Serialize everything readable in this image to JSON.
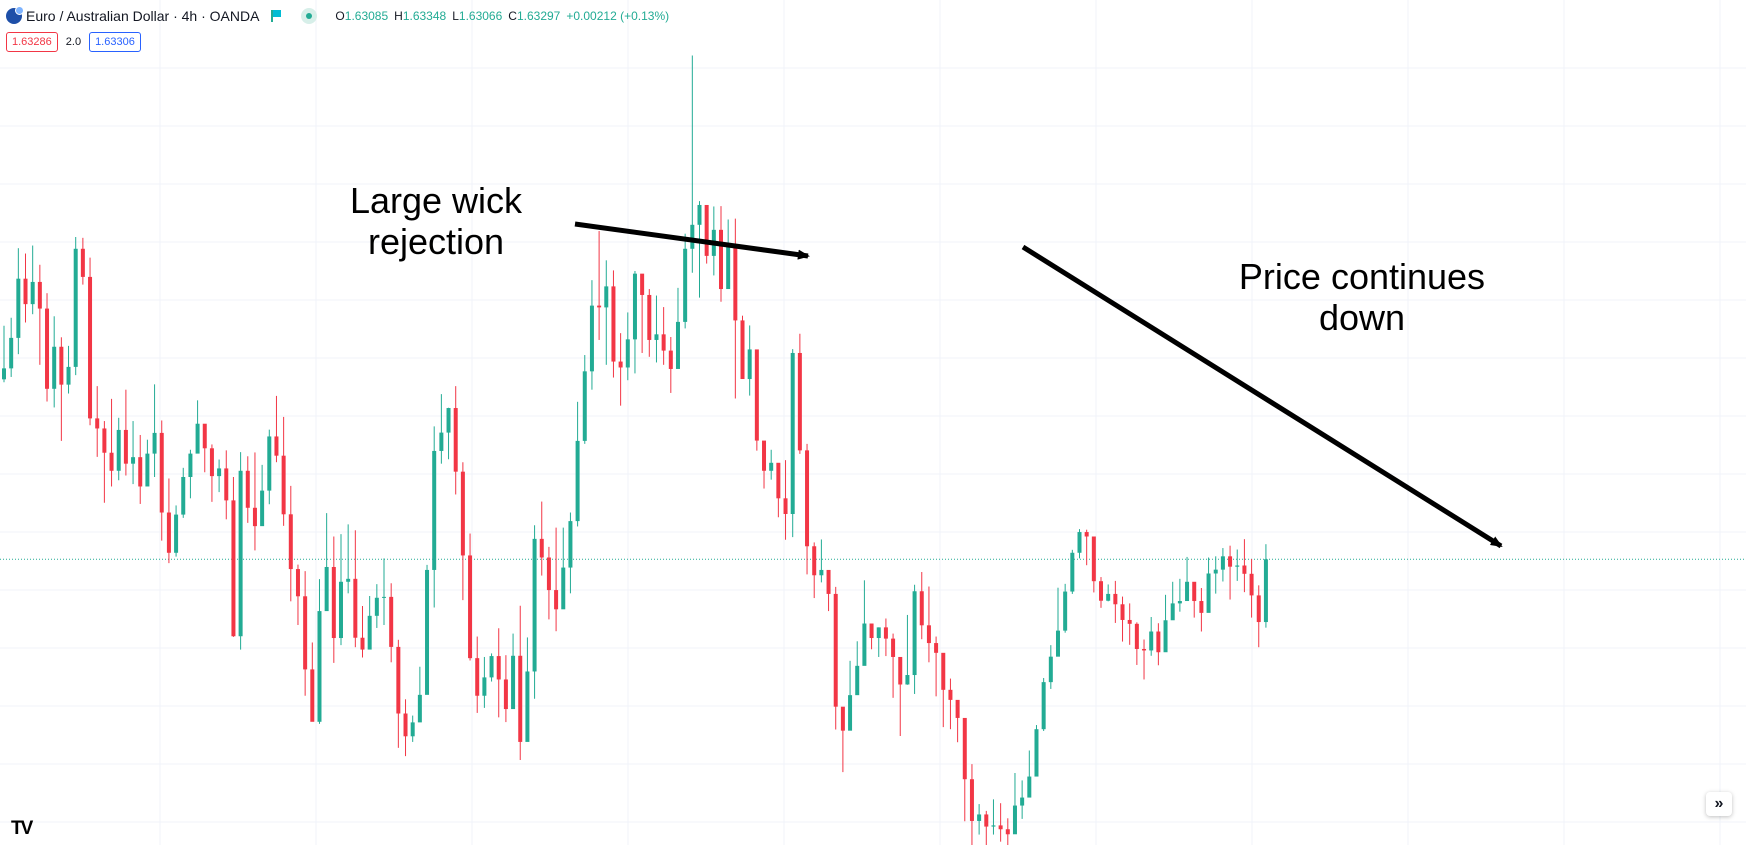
{
  "header": {
    "symbol_title": "Euro / Australian Dollar · 4h · OANDA",
    "ohlc": [
      {
        "k": "O",
        "v": "1.63085"
      },
      {
        "k": "H",
        "v": "1.63348"
      },
      {
        "k": "L",
        "v": "1.63066"
      },
      {
        "k": "C",
        "v": "1.63297"
      },
      {
        "k": "",
        "v": "+0.00212 (+0.13%)"
      }
    ],
    "sell_price": "1.63286",
    "spread": "2.0",
    "buy_price": "1.63306"
  },
  "annotations": {
    "wick_label_line1": "Large wick",
    "wick_label_line2": "rejection",
    "trend_label_line1": "Price continues",
    "trend_label_line2": "down"
  },
  "colors": {
    "up": "#22ab94",
    "down": "#f23645",
    "grid": "#f0f3fa",
    "price_line": "#22ab94",
    "arrow": "#000000"
  },
  "icons": [
    "currency-pair-icon",
    "flag-icon",
    "market-status-icon",
    "scroll-right-icon",
    "tradingview-logo"
  ],
  "chart_data": {
    "type": "candlestick",
    "timeframe": "4h",
    "grid": true,
    "current_price": 1.63297,
    "ylim": [
      1.6245,
      1.6495
    ],
    "candles": [
      [
        1.63905,
        1.63942,
        1.64086,
        1.63895
      ],
      [
        1.63942,
        1.64045,
        1.64113,
        1.63913
      ],
      [
        1.64045,
        1.64245,
        1.64348,
        1.6399
      ],
      [
        1.64245,
        1.64159,
        1.6433,
        1.64097
      ],
      [
        1.64159,
        1.64234,
        1.64357,
        1.64125
      ],
      [
        1.64234,
        1.64144,
        1.64292,
        1.63954
      ],
      [
        1.64144,
        1.63873,
        1.64196,
        1.6383
      ],
      [
        1.63873,
        1.64015,
        1.64118,
        1.6381
      ],
      [
        1.64015,
        1.63887,
        1.64047,
        1.63697
      ],
      [
        1.63887,
        1.63947,
        1.64018,
        1.63857
      ],
      [
        1.63947,
        1.64346,
        1.64386,
        1.63919
      ],
      [
        1.64346,
        1.64251,
        1.64383,
        1.64225
      ],
      [
        1.64251,
        1.63773,
        1.64316,
        1.6375
      ],
      [
        1.63773,
        1.63739,
        1.63882,
        1.63643
      ],
      [
        1.63739,
        1.63657,
        1.63764,
        1.63488
      ],
      [
        1.63657,
        1.63596,
        1.63839,
        1.63543
      ],
      [
        1.63596,
        1.63734,
        1.63775,
        1.63564
      ],
      [
        1.63734,
        1.6362,
        1.6387,
        1.6358
      ],
      [
        1.6362,
        1.63642,
        1.63764,
        1.63551
      ],
      [
        1.63642,
        1.63543,
        1.63717,
        1.63484
      ],
      [
        1.63543,
        1.63654,
        1.63701,
        1.6361
      ],
      [
        1.63654,
        1.63724,
        1.63888,
        1.63575
      ],
      [
        1.63724,
        1.63455,
        1.63766,
        1.6336
      ],
      [
        1.63455,
        1.63319,
        1.6357,
        1.63284
      ],
      [
        1.63319,
        1.63448,
        1.63479,
        1.63306
      ],
      [
        1.63448,
        1.63575,
        1.63606,
        1.63437
      ],
      [
        1.63575,
        1.63654,
        1.63667,
        1.63503
      ],
      [
        1.63654,
        1.63755,
        1.63834,
        1.63706
      ],
      [
        1.63755,
        1.63672,
        1.63753,
        1.63591
      ],
      [
        1.63672,
        1.63578,
        1.63685,
        1.63491
      ],
      [
        1.63578,
        1.63604,
        1.63634,
        1.63524
      ],
      [
        1.63604,
        1.63496,
        1.63665,
        1.63432
      ],
      [
        1.63496,
        1.63037,
        1.63575,
        1.63035
      ],
      [
        1.63037,
        1.63596,
        1.63659,
        1.62992
      ],
      [
        1.63596,
        1.63471,
        1.63645,
        1.6342
      ],
      [
        1.63471,
        1.63409,
        1.63658,
        1.63327
      ],
      [
        1.63409,
        1.63529,
        1.63616,
        1.63488
      ],
      [
        1.63529,
        1.63712,
        1.63735,
        1.63483
      ],
      [
        1.63712,
        1.63647,
        1.63849,
        1.63625
      ],
      [
        1.63647,
        1.63449,
        1.63778,
        1.6341
      ],
      [
        1.63449,
        1.63264,
        1.63545,
        1.63155
      ],
      [
        1.63264,
        1.63172,
        1.63279,
        1.63075
      ],
      [
        1.63172,
        1.62925,
        1.63257,
        1.62836
      ],
      [
        1.62925,
        1.62748,
        1.63016,
        1.62752
      ],
      [
        1.62748,
        1.63122,
        1.6323,
        1.62741
      ],
      [
        1.63122,
        1.63271,
        1.63453,
        1.6313
      ],
      [
        1.63271,
        1.63031,
        1.63374,
        1.62947
      ],
      [
        1.63031,
        1.63221,
        1.63382,
        1.63007
      ],
      [
        1.63221,
        1.63231,
        1.63415,
        1.63182
      ],
      [
        1.63231,
        1.63032,
        1.63395,
        1.63
      ],
      [
        1.63032,
        1.62992,
        1.63139,
        1.62965
      ],
      [
        1.62992,
        1.63106,
        1.63173,
        1.63005
      ],
      [
        1.63106,
        1.63167,
        1.63213,
        1.63065
      ],
      [
        1.63167,
        1.6317,
        1.633,
        1.63075
      ],
      [
        1.6317,
        1.63001,
        1.63216,
        1.62949
      ],
      [
        1.63001,
        1.62776,
        1.63025,
        1.6266
      ],
      [
        1.62776,
        1.62699,
        1.62824,
        1.62632
      ],
      [
        1.62699,
        1.62746,
        1.62769,
        1.6268
      ],
      [
        1.62746,
        1.62839,
        1.62934,
        1.62757
      ],
      [
        1.62839,
        1.63261,
        1.63278,
        1.62845
      ],
      [
        1.63261,
        1.63663,
        1.63746,
        1.63134
      ],
      [
        1.63663,
        1.63725,
        1.63855,
        1.6362
      ],
      [
        1.63725,
        1.63808,
        1.63809,
        1.63635
      ],
      [
        1.63808,
        1.63593,
        1.63882,
        1.63516
      ],
      [
        1.63593,
        1.6331,
        1.63625,
        1.63159
      ],
      [
        1.6331,
        1.62963,
        1.63384,
        1.62955
      ],
      [
        1.62963,
        1.62836,
        1.63036,
        1.62778
      ],
      [
        1.62836,
        1.62898,
        1.62967,
        1.62795
      ],
      [
        1.62898,
        1.6297,
        1.62979,
        1.62884
      ],
      [
        1.6297,
        1.62891,
        1.63064,
        1.62763
      ],
      [
        1.62891,
        1.62791,
        1.62973,
        1.62747
      ],
      [
        1.62791,
        1.62971,
        1.63046,
        1.62795
      ],
      [
        1.62971,
        1.6268,
        1.6314,
        1.62619
      ],
      [
        1.6268,
        1.62918,
        1.63033,
        1.62739
      ],
      [
        1.62918,
        1.63366,
        1.63412,
        1.62826
      ],
      [
        1.63366,
        1.63303,
        1.63492,
        1.63242
      ],
      [
        1.63303,
        1.63193,
        1.63339,
        1.63094
      ],
      [
        1.63193,
        1.63128,
        1.63404,
        1.63054
      ],
      [
        1.63128,
        1.63269,
        1.63404,
        1.63142
      ],
      [
        1.63269,
        1.63426,
        1.63455,
        1.63182
      ],
      [
        1.63426,
        1.63697,
        1.63829,
        1.63408
      ],
      [
        1.63697,
        1.63932,
        1.63987,
        1.63687
      ],
      [
        1.63932,
        1.64154,
        1.6424,
        1.6387
      ],
      [
        1.64154,
        1.64148,
        1.64406,
        1.64038
      ],
      [
        1.64148,
        1.64219,
        1.64307,
        1.63954
      ],
      [
        1.64219,
        1.63965,
        1.64273,
        1.63911
      ],
      [
        1.63965,
        1.63945,
        1.64061,
        1.63816
      ],
      [
        1.63945,
        1.6404,
        1.64131,
        1.63902
      ],
      [
        1.6404,
        1.64262,
        1.64271,
        1.63925
      ],
      [
        1.64262,
        1.6419,
        1.64252,
        1.63994
      ],
      [
        1.6419,
        1.64038,
        1.6421,
        1.63981
      ],
      [
        1.64038,
        1.64057,
        1.64188,
        1.63962
      ],
      [
        1.64057,
        1.64002,
        1.64149,
        1.63954
      ],
      [
        1.64002,
        1.6394,
        1.64048,
        1.63859
      ],
      [
        1.6394,
        1.64099,
        1.64214,
        1.63961
      ],
      [
        1.64099,
        1.64346,
        1.64397,
        1.64077
      ],
      [
        1.64346,
        1.64427,
        1.64999,
        1.64265
      ],
      [
        1.64427,
        1.64494,
        1.64507,
        1.64181
      ],
      [
        1.64494,
        1.64322,
        1.64481,
        1.64296
      ],
      [
        1.64322,
        1.6441,
        1.64489,
        1.64256
      ],
      [
        1.6441,
        1.6421,
        1.6449,
        1.64167
      ],
      [
        1.6421,
        1.6436,
        1.64445,
        1.64236
      ],
      [
        1.6436,
        1.64104,
        1.64448,
        1.6384
      ],
      [
        1.64104,
        1.63906,
        1.6412,
        1.63914
      ],
      [
        1.63906,
        1.64006,
        1.64087,
        1.6385
      ],
      [
        1.64006,
        1.63698,
        1.63912,
        1.63664
      ],
      [
        1.63698,
        1.63596,
        1.63666,
        1.63536
      ],
      [
        1.63596,
        1.63623,
        1.63667,
        1.63566
      ],
      [
        1.63623,
        1.63503,
        1.63622,
        1.63439
      ],
      [
        1.63503,
        1.6345,
        1.63632,
        1.63363
      ],
      [
        1.6345,
        1.63994,
        1.64007,
        1.63372
      ],
      [
        1.63994,
        1.63665,
        1.64059,
        1.63653
      ],
      [
        1.63665,
        1.63341,
        1.63687,
        1.63246
      ],
      [
        1.63341,
        1.63243,
        1.63354,
        1.63166
      ],
      [
        1.63243,
        1.63261,
        1.63364,
        1.63219
      ],
      [
        1.63261,
        1.6318,
        1.63228,
        1.63122
      ],
      [
        1.6318,
        1.62799,
        1.63204,
        1.62722
      ],
      [
        1.62799,
        1.62718,
        1.62759,
        1.62578
      ],
      [
        1.62718,
        1.62838,
        1.62954,
        1.62787
      ],
      [
        1.62838,
        1.62937,
        1.6302,
        1.62856
      ],
      [
        1.62937,
        1.6308,
        1.63226,
        1.63007
      ],
      [
        1.6308,
        1.63031,
        1.63076,
        1.62993
      ],
      [
        1.63031,
        1.63067,
        1.63067,
        1.62967
      ],
      [
        1.63067,
        1.63029,
        1.63097,
        1.6297
      ],
      [
        1.63029,
        1.62967,
        1.63046,
        1.62829
      ],
      [
        1.62967,
        1.62874,
        1.62932,
        1.627
      ],
      [
        1.62874,
        1.62906,
        1.63109,
        1.62873
      ],
      [
        1.62906,
        1.63189,
        1.63211,
        1.62842
      ],
      [
        1.63189,
        1.63074,
        1.63254,
        1.63027
      ],
      [
        1.63074,
        1.63014,
        1.63205,
        1.62949
      ],
      [
        1.63014,
        1.62981,
        1.63036,
        1.62834
      ],
      [
        1.62981,
        1.62856,
        1.6296,
        1.6273
      ],
      [
        1.62856,
        1.62822,
        1.62894,
        1.62723
      ],
      [
        1.62822,
        1.62761,
        1.62789,
        1.62679
      ],
      [
        1.62761,
        1.62554,
        1.62746,
        1.62412
      ],
      [
        1.62554,
        1.62413,
        1.62605,
        1.62324
      ],
      [
        1.62413,
        1.62435,
        1.6247,
        1.62367
      ],
      [
        1.62435,
        1.62394,
        1.62447,
        1.62285
      ],
      [
        1.62394,
        1.62398,
        1.62486,
        1.62367
      ],
      [
        1.62398,
        1.62385,
        1.62473,
        1.62343
      ],
      [
        1.62385,
        1.62368,
        1.62422,
        1.62328
      ],
      [
        1.62368,
        1.62465,
        1.62575,
        1.62438
      ],
      [
        1.62465,
        1.62492,
        1.6255,
        1.6242
      ],
      [
        1.62492,
        1.62563,
        1.62651,
        1.62527
      ],
      [
        1.62563,
        1.62723,
        1.62737,
        1.6265
      ],
      [
        1.62723,
        1.62882,
        1.62896,
        1.62717
      ],
      [
        1.62882,
        1.62968,
        1.63007,
        1.62859
      ],
      [
        1.62968,
        1.63056,
        1.63201,
        1.63038
      ],
      [
        1.63056,
        1.63188,
        1.63214,
        1.63049
      ],
      [
        1.63188,
        1.63319,
        1.63329,
        1.6318
      ],
      [
        1.63319,
        1.63389,
        1.63399,
        1.633
      ],
      [
        1.63389,
        1.63374,
        1.63397,
        1.63277
      ],
      [
        1.63374,
        1.63223,
        1.63335,
        1.63185
      ],
      [
        1.63223,
        1.63157,
        1.63237,
        1.63133
      ],
      [
        1.63157,
        1.6318,
        1.63212,
        1.63155
      ],
      [
        1.6318,
        1.63145,
        1.63224,
        1.63082
      ],
      [
        1.63145,
        1.63092,
        1.63171,
        1.63019
      ],
      [
        1.63092,
        1.63079,
        1.63148,
        1.63008
      ],
      [
        1.63079,
        1.62994,
        1.63084,
        1.6294
      ],
      [
        1.62994,
        1.62989,
        1.63026,
        1.62891
      ],
      [
        1.62989,
        1.63053,
        1.63102,
        1.62971
      ],
      [
        1.63053,
        1.62983,
        1.63081,
        1.62939
      ],
      [
        1.62983,
        1.63091,
        1.63177,
        1.63071
      ],
      [
        1.63091,
        1.63148,
        1.63221,
        1.63107
      ],
      [
        1.63148,
        1.63156,
        1.63231,
        1.6312
      ],
      [
        1.63156,
        1.63221,
        1.63305,
        1.63169
      ],
      [
        1.63221,
        1.63156,
        1.63217,
        1.631
      ],
      [
        1.63156,
        1.63116,
        1.632,
        1.63053
      ],
      [
        1.63116,
        1.63249,
        1.63303,
        1.6316
      ],
      [
        1.63249,
        1.63262,
        1.63307,
        1.63181
      ],
      [
        1.63262,
        1.63307,
        1.63335,
        1.63222
      ],
      [
        1.63307,
        1.63272,
        1.63343,
        1.63161
      ],
      [
        1.63272,
        1.63276,
        1.6333,
        1.63224
      ],
      [
        1.63276,
        1.63248,
        1.63365,
        1.63186
      ],
      [
        1.63248,
        1.63175,
        1.63298,
        1.631
      ],
      [
        1.63175,
        1.63085,
        1.63209,
        1.63
      ],
      [
        1.63085,
        1.63297,
        1.63348,
        1.63066
      ]
    ]
  }
}
